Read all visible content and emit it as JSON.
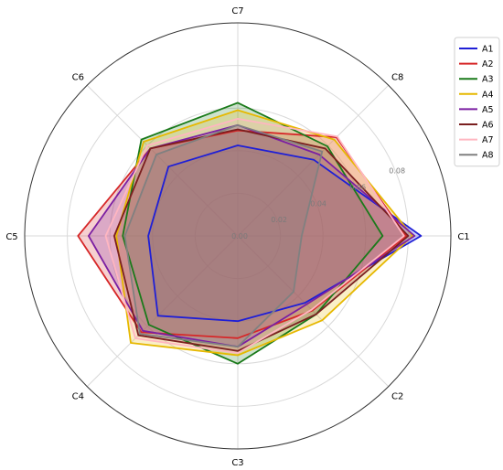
{
  "chart_data": {
    "type": "radar",
    "categories": [
      "C1",
      "C2",
      "C3",
      "C4",
      "C5",
      "C6",
      "C7",
      "C8"
    ],
    "r_ticks": [
      "0.00",
      "0.02",
      "0.04",
      "0.06",
      "0.08"
    ],
    "rlim": [
      0,
      0.1
    ],
    "grid": true,
    "legend_position": "top-right",
    "series": [
      {
        "name": "A1",
        "color": "#1f1fd6",
        "values": [
          0.086,
          0.0445,
          0.04,
          0.053,
          0.042,
          0.046,
          0.0425,
          0.0505
        ]
      },
      {
        "name": "A2",
        "color": "#d62728",
        "values": [
          0.079,
          0.0495,
          0.048,
          0.064,
          0.075,
          0.058,
          0.0495,
          0.0655
        ]
      },
      {
        "name": "A3",
        "color": "#1a7a1a",
        "values": [
          0.068,
          0.052,
          0.06,
          0.059,
          0.054,
          0.064,
          0.0625,
          0.0595
        ]
      },
      {
        "name": "A4",
        "color": "#e6b800",
        "values": [
          0.082,
          0.056,
          0.056,
          0.071,
          0.057,
          0.0625,
          0.059,
          0.064
        ]
      },
      {
        "name": "A5",
        "color": "#7b1fa2",
        "values": [
          0.083,
          0.0455,
          0.052,
          0.063,
          0.07,
          0.058,
          0.052,
          0.054
        ]
      },
      {
        "name": "A6",
        "color": "#7a1f1f",
        "values": [
          0.08,
          0.052,
          0.054,
          0.066,
          0.058,
          0.058,
          0.05,
          0.058
        ]
      },
      {
        "name": "A7",
        "color": "#ffb6c1",
        "values": [
          0.078,
          0.049,
          0.055,
          0.068,
          0.062,
          0.06,
          0.055,
          0.066
        ]
      },
      {
        "name": "A8",
        "color": "#808080",
        "values": [
          0.03,
          0.037,
          0.052,
          0.065,
          0.053,
          0.054,
          0.052,
          0.056
        ]
      }
    ]
  }
}
